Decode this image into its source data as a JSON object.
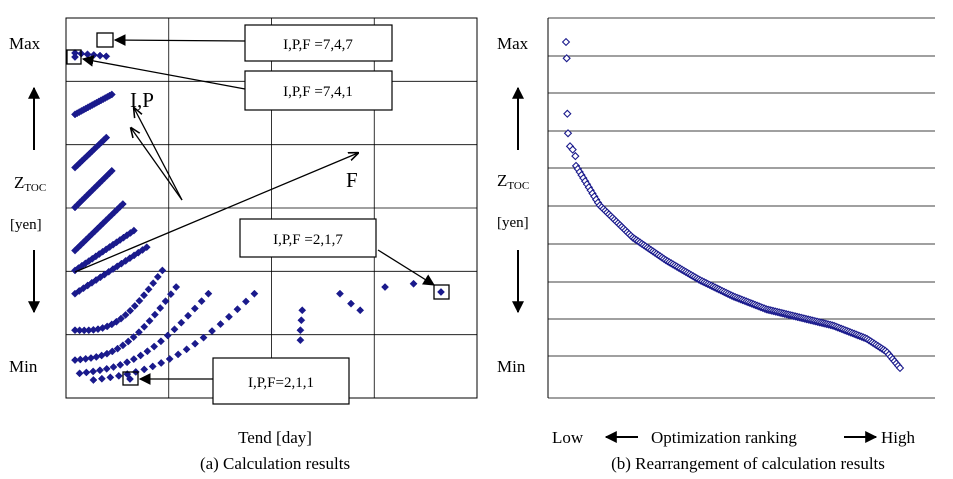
{
  "chart_data": [
    {
      "type": "scatter",
      "panel_label": "(a) Calculation results",
      "xlabel": "Tend [day]",
      "ylabel": {
        "symbol": "Z",
        "subscript": "TOC",
        "unit": "[yen]"
      },
      "y_axis_labels": {
        "top": "Max",
        "bottom": "Min"
      },
      "grid": true,
      "annotations": {
        "top_high": "I,P,F =7,4,7",
        "top_low": "I,P,F =7,4,1",
        "right": "I,P,F =2,1,7",
        "bottom": "I,P,F=2,1,1",
        "arrow_ip": "I,P",
        "arrow_f": "F"
      },
      "marker_color": "#1a1a8c",
      "clusters": [
        {
          "x": [
            0.0,
            0.34
          ],
          "y": [
            0.985,
            0.975
          ],
          "n": 6
        },
        {
          "x": [
            0.0,
            0.4
          ],
          "y": [
            0.8,
            0.86
          ],
          "n": 18
        },
        {
          "x": [
            0.0,
            0.34
          ],
          "y": [
            0.64,
            0.73
          ],
          "n": 14
        },
        {
          "x": [
            0.0,
            0.4
          ],
          "y": [
            0.52,
            0.63
          ],
          "n": 16
        },
        {
          "x": [
            0.0,
            0.52
          ],
          "y": [
            0.39,
            0.53
          ],
          "n": 18
        },
        {
          "x": [
            0.0,
            0.64
          ],
          "y": [
            0.33,
            0.45
          ],
          "n": 18
        },
        {
          "x": [
            0.0,
            0.78
          ],
          "y": [
            0.26,
            0.4
          ],
          "n": 18
        },
        {
          "x": [
            0.0,
            0.95
          ],
          "y": [
            0.15,
            0.33
          ],
          "n": 20
        },
        {
          "x": [
            0.0,
            1.1
          ],
          "y": [
            0.06,
            0.28
          ],
          "n": 20
        },
        {
          "x": [
            0.05,
            1.45
          ],
          "y": [
            0.02,
            0.26
          ],
          "n": 20
        },
        {
          "x": [
            0.2,
            1.95
          ],
          "y": [
            0.0,
            0.26
          ],
          "n": 20
        }
      ],
      "extra_points": [
        {
          "x": 2.45,
          "y": 0.12
        },
        {
          "x": 2.45,
          "y": 0.15
        },
        {
          "x": 2.46,
          "y": 0.18
        },
        {
          "x": 2.47,
          "y": 0.21
        },
        {
          "x": 2.88,
          "y": 0.26
        },
        {
          "x": 3.0,
          "y": 0.23
        },
        {
          "x": 3.1,
          "y": 0.21
        },
        {
          "x": 3.37,
          "y": 0.28
        },
        {
          "x": 3.68,
          "y": 0.29
        }
      ]
    },
    {
      "type": "scatter",
      "panel_label": "(b) Rearrangement of calculation results",
      "xlabel": {
        "low": "Low",
        "middle": "Optimization ranking",
        "high": "High"
      },
      "ylabel": {
        "symbol": "Z",
        "subscript": "TOC",
        "unit": "[yen]"
      },
      "y_axis_labels": {
        "top": "Max",
        "bottom": "Min"
      },
      "grid": "horizontal",
      "marker_color": "#1a1a8c",
      "marker": "hollow-diamond",
      "num_points": 185,
      "head_points": [
        {
          "x": 0.0,
          "y": 1.0
        },
        {
          "x": 0.002,
          "y": 0.95
        },
        {
          "x": 0.004,
          "y": 0.78
        },
        {
          "x": 0.006,
          "y": 0.72
        },
        {
          "x": 0.012,
          "y": 0.68
        },
        {
          "x": 0.02,
          "y": 0.67
        },
        {
          "x": 0.028,
          "y": 0.65
        }
      ],
      "curve_keypoints": [
        {
          "x": 0.03,
          "y": 0.62
        },
        {
          "x": 0.1,
          "y": 0.5
        },
        {
          "x": 0.2,
          "y": 0.4
        },
        {
          "x": 0.3,
          "y": 0.33
        },
        {
          "x": 0.4,
          "y": 0.27
        },
        {
          "x": 0.5,
          "y": 0.22
        },
        {
          "x": 0.6,
          "y": 0.18
        },
        {
          "x": 0.7,
          "y": 0.155
        },
        {
          "x": 0.8,
          "y": 0.13
        },
        {
          "x": 0.9,
          "y": 0.09
        },
        {
          "x": 0.96,
          "y": 0.05
        },
        {
          "x": 1.0,
          "y": 0.0
        }
      ]
    }
  ]
}
